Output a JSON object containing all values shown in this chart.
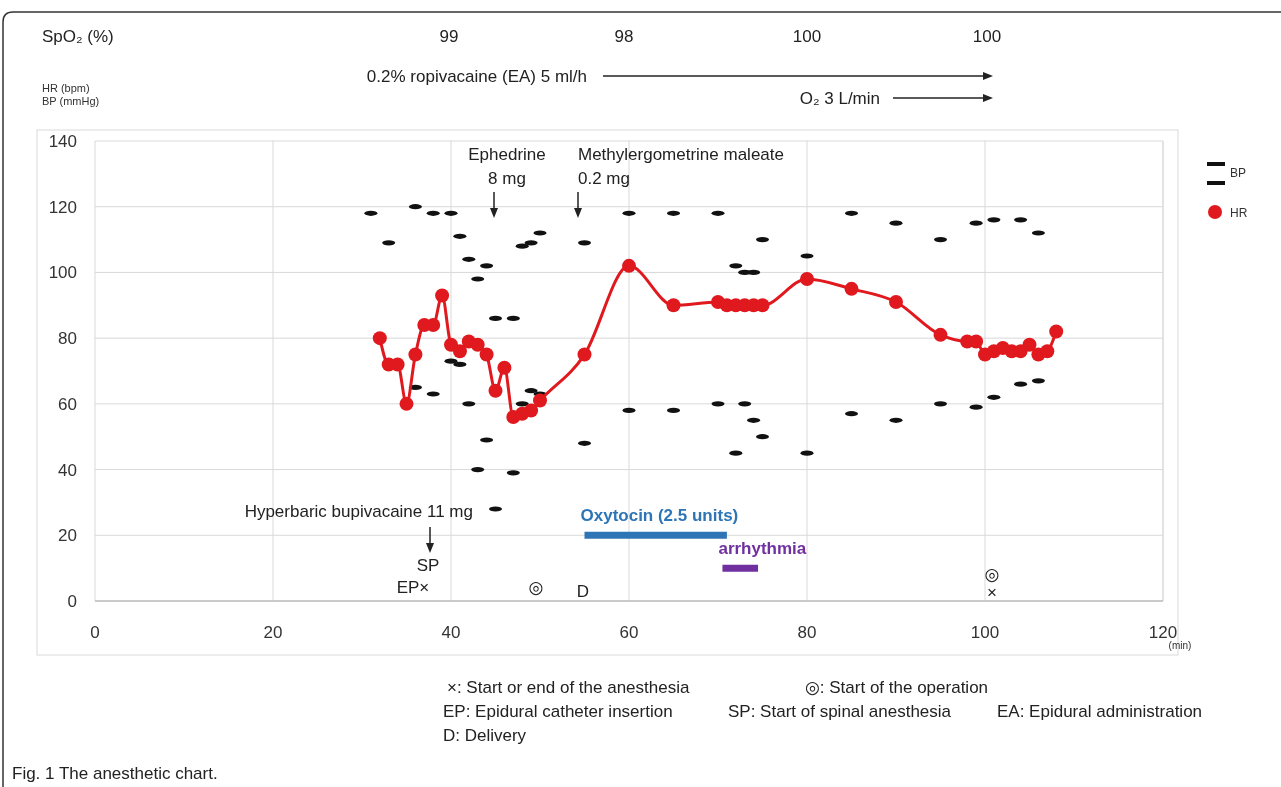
{
  "chart_data": {
    "type": "scatter",
    "title": "Fig. 1 The anesthetic chart.",
    "xlabel": "(min)",
    "ylabel": "HR (bpm)\nBP (mmHg)",
    "xlim": [
      0,
      120
    ],
    "xticks": [
      0,
      20,
      40,
      60,
      80,
      100,
      120
    ],
    "ylim": [
      0,
      140
    ],
    "yticks": [
      0,
      20,
      40,
      60,
      80,
      100,
      120,
      140
    ],
    "grid": true,
    "legend": "top right",
    "series": [
      {
        "name": "BP",
        "color": "#111111",
        "x": [
          31,
          33,
          36,
          38,
          40,
          41,
          42,
          43,
          44,
          45,
          47,
          48,
          49,
          50,
          55,
          60,
          65,
          70,
          72,
          73,
          74,
          75,
          80,
          85,
          90,
          95,
          99,
          101,
          104,
          106
        ],
        "values": [
          118,
          109,
          120,
          118,
          118,
          111,
          104,
          98,
          102,
          86,
          86,
          108,
          109,
          112,
          109,
          118,
          118,
          118,
          102,
          100,
          100,
          110,
          105,
          118,
          115,
          110,
          115,
          116,
          116,
          112
        ]
      },
      {
        "color": "#111111",
        "x": [
          36,
          38,
          40,
          41,
          42,
          43,
          44,
          45,
          47,
          48,
          49,
          50,
          55,
          60,
          65,
          70,
          72,
          73,
          74,
          75,
          80,
          85,
          90,
          95,
          99,
          101,
          104,
          106
        ],
        "values": [
          65,
          63,
          73,
          72,
          60,
          40,
          49,
          28,
          39,
          60,
          64,
          63,
          48,
          58,
          58,
          60,
          45,
          60,
          55,
          50,
          45,
          57,
          55,
          60,
          59,
          62,
          66,
          67
        ]
      },
      {
        "name": "HR",
        "type": "line",
        "marker": "circle",
        "color": "#e0191e",
        "x": [
          32,
          33,
          34,
          35,
          36,
          37,
          38,
          39,
          40,
          41,
          42,
          43,
          44,
          45,
          46,
          47,
          48,
          49,
          50,
          55,
          60,
          65,
          70,
          71,
          72,
          73,
          74,
          75,
          80,
          85,
          90,
          95,
          98,
          99,
          100,
          101,
          102,
          103,
          104,
          105,
          106,
          107,
          108
        ],
        "values": [
          80,
          72,
          72,
          60,
          75,
          84,
          84,
          93,
          78,
          76,
          79,
          78,
          75,
          64,
          71,
          56,
          57,
          58,
          61,
          75,
          102,
          90,
          91,
          90,
          90,
          90,
          90,
          90,
          98,
          95,
          91,
          81,
          79,
          79,
          75,
          76,
          77,
          76,
          76,
          78,
          75,
          76,
          82
        ]
      },
      {
        "name": "Oxytocin (2.5 units)",
        "type": "line",
        "marker": "none",
        "color": "#2e75b6",
        "x": [
          55,
          71
        ],
        "values": [
          20,
          20
        ]
      },
      {
        "name": "arrhythmia",
        "type": "line",
        "marker": "none",
        "color": "#7030a0",
        "x": [
          70.5,
          74.5
        ],
        "values": [
          10,
          10
        ]
      }
    ],
    "annotations": [
      "SpO₂ (%)",
      "99",
      "98",
      "100",
      "100",
      "0.2% ropivacaine  (EA) 5 ml/h",
      "O₂ 3 L/min",
      "Hyperbaric bupivacaine 11 mg",
      "Ephedrine\n8 mg",
      "Methylergometrine maleate\n0.2 mg",
      "SP",
      "EP×",
      "◎",
      "D",
      "◎",
      "×",
      "×: Start or end of the anesthesia",
      "◎: Start of the operation",
      "EP: Epidural catheter insertion",
      "SP: Start of spinal anesthesia",
      "EA: Epidural administration",
      "D: Delivery"
    ]
  }
}
